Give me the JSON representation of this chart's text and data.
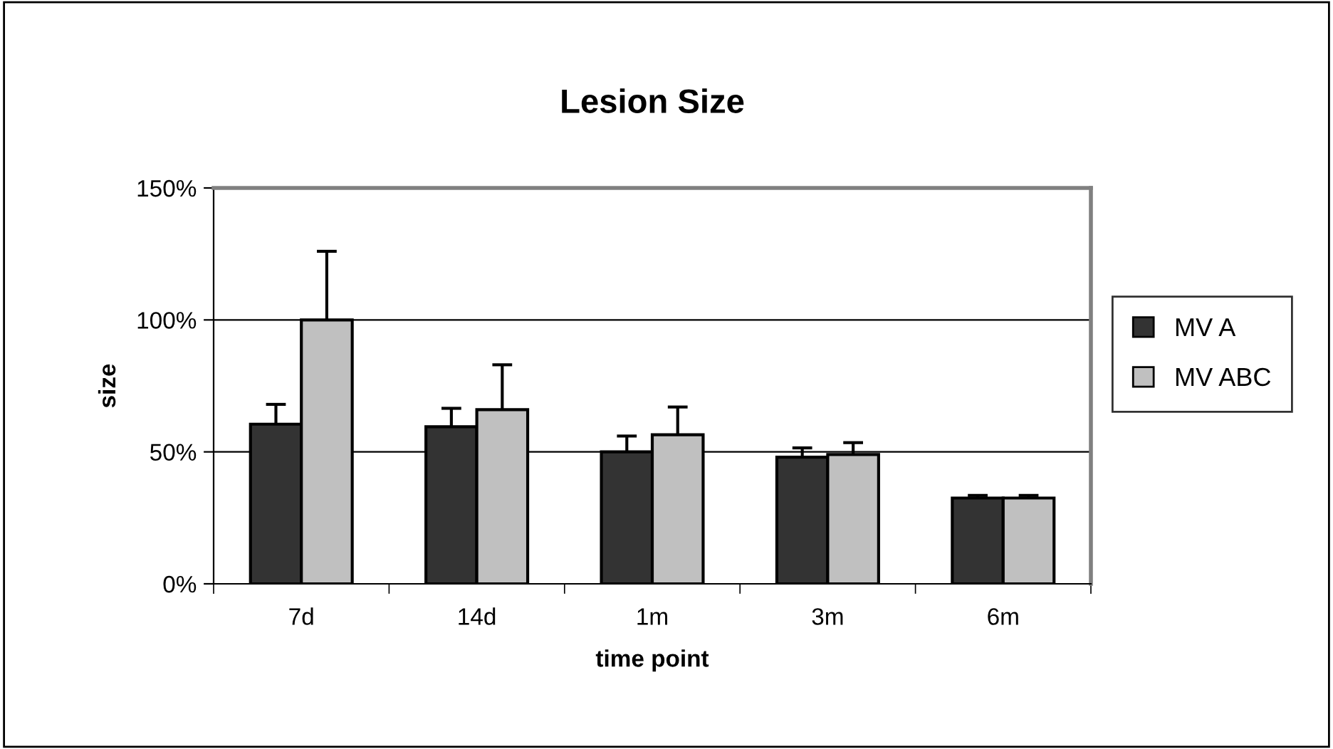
{
  "chart_data": {
    "type": "bar",
    "title": "Lesion Size",
    "xlabel": "time point",
    "ylabel": "size",
    "categories": [
      "7d",
      "14d",
      "1m",
      "3m",
      "6m"
    ],
    "series": [
      {
        "name": "MV A",
        "color": "#333333",
        "values": [
          60.5,
          59.5,
          50,
          48,
          32.5
        ],
        "errors": [
          7.5,
          7,
          6,
          3.5,
          1
        ]
      },
      {
        "name": "MV ABC",
        "color": "#c0c0c0",
        "values": [
          100,
          66,
          56.5,
          49,
          32.5
        ],
        "errors": [
          26,
          17,
          10.5,
          4.5,
          1
        ]
      }
    ],
    "ylim": [
      0,
      150
    ],
    "yticks": [
      {
        "value": 0,
        "label": "0%"
      },
      {
        "value": 50,
        "label": "50%"
      },
      {
        "value": 100,
        "label": "100%"
      },
      {
        "value": 150,
        "label": "150%"
      }
    ],
    "grid": "y",
    "legend": "right"
  }
}
